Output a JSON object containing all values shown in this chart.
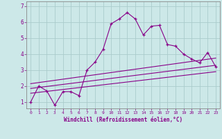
{
  "xlabel": "Windchill (Refroidissement éolien,°C)",
  "bg_color": "#cce8e8",
  "line_color": "#880088",
  "grid_color": "#aacccc",
  "spine_color": "#888888",
  "x_ticks": [
    0,
    1,
    2,
    3,
    4,
    5,
    6,
    7,
    8,
    9,
    10,
    11,
    12,
    13,
    14,
    15,
    16,
    17,
    18,
    19,
    20,
    21,
    22,
    23
  ],
  "y_ticks": [
    1,
    2,
    3,
    4,
    5,
    6,
    7
  ],
  "ylim": [
    0.6,
    7.3
  ],
  "xlim": [
    -0.5,
    23.5
  ],
  "series1_x": [
    0,
    1,
    2,
    3,
    4,
    5,
    6,
    7,
    8,
    9,
    10,
    11,
    12,
    13,
    14,
    15,
    16,
    17,
    18,
    19,
    20,
    21,
    22,
    23
  ],
  "series1_y": [
    1.0,
    2.0,
    1.7,
    0.8,
    1.65,
    1.65,
    1.4,
    3.0,
    3.5,
    4.3,
    5.9,
    6.2,
    6.6,
    6.2,
    5.2,
    5.75,
    5.8,
    4.6,
    4.5,
    4.0,
    3.7,
    3.45,
    4.1,
    3.2
  ],
  "series2_x": [
    0,
    23
  ],
  "series2_y": [
    1.55,
    2.9
  ],
  "series3_x": [
    0,
    23
  ],
  "series3_y": [
    1.85,
    3.3
  ],
  "series4_x": [
    0,
    23
  ],
  "series4_y": [
    2.15,
    3.75
  ]
}
